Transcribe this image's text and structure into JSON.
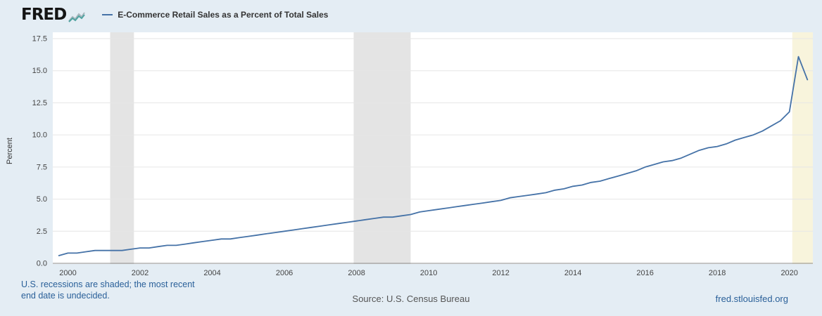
{
  "header": {
    "brand": "FRED",
    "legend_label": "E-Commerce Retail Sales as a Percent of Total Sales"
  },
  "footer": {
    "note_line1": "U.S. recessions are shaded; the most recent",
    "note_line2": "end date is undecided.",
    "source": "Source: U.S. Census Bureau",
    "site": "fred.stlouisfed.org"
  },
  "theme": {
    "background": "#e4edf4",
    "plot_background": "#ffffff",
    "gridline": "#e6e6e6",
    "axis_line": "#8a8a8a",
    "axis_text": "#444444",
    "line": "#4572a7",
    "recession_gray": "#e4e4e4",
    "recession_yellow": "#f8f4dc",
    "footer_blue": "#2a6099",
    "source_gray": "#555555"
  },
  "chart_data": {
    "type": "line",
    "title": "E-Commerce Retail Sales as a Percent of Total Sales",
    "xlabel": "",
    "ylabel": "Percent",
    "xlim": [
      1999.58,
      2020.65
    ],
    "ylim": [
      0,
      17.5
    ],
    "yticks": [
      0,
      2.5,
      5,
      7.5,
      10,
      12.5,
      15,
      17.5
    ],
    "xticks": [
      2000,
      2002,
      2004,
      2006,
      2008,
      2010,
      2012,
      2014,
      2016,
      2018,
      2020
    ],
    "grid": "horizontal",
    "legend_position": "top-header",
    "series": [
      {
        "name": "E-Commerce Retail Sales as a Percent of Total Sales",
        "color": "#4572a7",
        "frequency": "quarterly",
        "points": [
          [
            1999.75,
            0.6
          ],
          [
            2000,
            0.8
          ],
          [
            2000.25,
            0.8
          ],
          [
            2000.5,
            0.9
          ],
          [
            2000.75,
            1.0
          ],
          [
            2001,
            1.0
          ],
          [
            2001.25,
            1.0
          ],
          [
            2001.5,
            1.0
          ],
          [
            2001.75,
            1.1
          ],
          [
            2002,
            1.2
          ],
          [
            2002.25,
            1.2
          ],
          [
            2002.5,
            1.3
          ],
          [
            2002.75,
            1.4
          ],
          [
            2003,
            1.4
          ],
          [
            2003.25,
            1.5
          ],
          [
            2003.5,
            1.6
          ],
          [
            2003.75,
            1.7
          ],
          [
            2004,
            1.8
          ],
          [
            2004.25,
            1.9
          ],
          [
            2004.5,
            1.9
          ],
          [
            2004.75,
            2.0
          ],
          [
            2005,
            2.1
          ],
          [
            2005.25,
            2.2
          ],
          [
            2005.5,
            2.3
          ],
          [
            2005.75,
            2.4
          ],
          [
            2006,
            2.5
          ],
          [
            2006.25,
            2.6
          ],
          [
            2006.5,
            2.7
          ],
          [
            2006.75,
            2.8
          ],
          [
            2007,
            2.9
          ],
          [
            2007.25,
            3.0
          ],
          [
            2007.5,
            3.1
          ],
          [
            2007.75,
            3.2
          ],
          [
            2008,
            3.3
          ],
          [
            2008.25,
            3.4
          ],
          [
            2008.5,
            3.5
          ],
          [
            2008.75,
            3.6
          ],
          [
            2009,
            3.6
          ],
          [
            2009.25,
            3.7
          ],
          [
            2009.5,
            3.8
          ],
          [
            2009.75,
            4.0
          ],
          [
            2010,
            4.1
          ],
          [
            2010.25,
            4.2
          ],
          [
            2010.5,
            4.3
          ],
          [
            2010.75,
            4.4
          ],
          [
            2011,
            4.5
          ],
          [
            2011.25,
            4.6
          ],
          [
            2011.5,
            4.7
          ],
          [
            2011.75,
            4.8
          ],
          [
            2012,
            4.9
          ],
          [
            2012.25,
            5.1
          ],
          [
            2012.5,
            5.2
          ],
          [
            2012.75,
            5.3
          ],
          [
            2013,
            5.4
          ],
          [
            2013.25,
            5.5
          ],
          [
            2013.5,
            5.7
          ],
          [
            2013.75,
            5.8
          ],
          [
            2014,
            6.0
          ],
          [
            2014.25,
            6.1
          ],
          [
            2014.5,
            6.3
          ],
          [
            2014.75,
            6.4
          ],
          [
            2015,
            6.6
          ],
          [
            2015.25,
            6.8
          ],
          [
            2015.5,
            7.0
          ],
          [
            2015.75,
            7.2
          ],
          [
            2016,
            7.5
          ],
          [
            2016.25,
            7.7
          ],
          [
            2016.5,
            7.9
          ],
          [
            2016.75,
            8.0
          ],
          [
            2017,
            8.2
          ],
          [
            2017.25,
            8.5
          ],
          [
            2017.5,
            8.8
          ],
          [
            2017.75,
            9.0
          ],
          [
            2018,
            9.1
          ],
          [
            2018.25,
            9.3
          ],
          [
            2018.5,
            9.6
          ],
          [
            2018.75,
            9.8
          ],
          [
            2019,
            10.0
          ],
          [
            2019.25,
            10.3
          ],
          [
            2019.5,
            10.7
          ],
          [
            2019.75,
            11.1
          ],
          [
            2020,
            11.8
          ],
          [
            2020.25,
            16.1
          ],
          [
            2020.5,
            14.3
          ]
        ]
      }
    ],
    "recessions": [
      {
        "start": 2001.17,
        "end": 2001.83,
        "color": "#e4e4e4"
      },
      {
        "start": 2007.92,
        "end": 2009.5,
        "color": "#e4e4e4"
      },
      {
        "start": 2020.08,
        "end": 2020.65,
        "color": "#f8f4dc"
      }
    ]
  }
}
